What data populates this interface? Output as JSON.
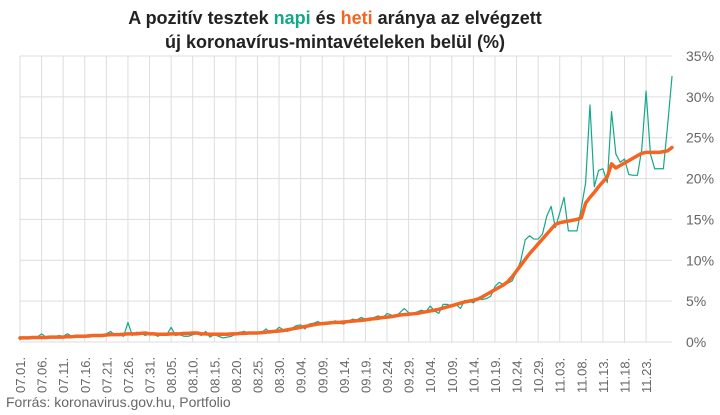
{
  "title": {
    "line1_pre": "A pozitív tesztek ",
    "line1_napi": "napi",
    "line1_mid": " és ",
    "line1_heti": "heti",
    "line1_post": " aránya az elvégzett",
    "line2": "új koronavírus-mintavételeken belül (%)"
  },
  "source": "Forrás: koronavirus.gov.hu, Portfolio",
  "colors": {
    "napi": "#13a88a",
    "heti": "#f26522",
    "grid": "#dddddd",
    "text": "#666666"
  },
  "chart_data": {
    "type": "line",
    "title": "A pozitív tesztek napi és heti aránya az elvégzett új koronavírus-mintavételeken belül (%)",
    "xlabel": "",
    "ylabel": "",
    "ylim": [
      0,
      35
    ],
    "yticks": [
      0,
      5,
      10,
      15,
      20,
      25,
      30,
      35
    ],
    "ytick_labels": [
      "0%",
      "5%",
      "10%",
      "15%",
      "20%",
      "25%",
      "30%",
      "35%"
    ],
    "y_axis_position": "right",
    "grid": true,
    "x_start": "07.01.",
    "x_end": "11.23.",
    "xtick_labels": [
      "07.01.",
      "07.06.",
      "07.11.",
      "07.16.",
      "07.21.",
      "07.26.",
      "07.31.",
      "08.05.",
      "08.10.",
      "08.15.",
      "08.20.",
      "08.25.",
      "08.30.",
      "09.04.",
      "09.09.",
      "09.14.",
      "09.19.",
      "09.24.",
      "09.29.",
      "10.04.",
      "10.09.",
      "10.14.",
      "10.19.",
      "10.24.",
      "10.29.",
      "11.03.",
      "11.08.",
      "11.13.",
      "11.18.",
      "11.23."
    ],
    "series": [
      {
        "name": "napi",
        "values": [
          0.3,
          0.6,
          0.4,
          0.5,
          0.6,
          1.0,
          0.6,
          0.5,
          0.6,
          0.8,
          0.7,
          1.0,
          0.7,
          0.6,
          0.8,
          0.7,
          0.6,
          0.9,
          0.8,
          0.7,
          1.0,
          1.3,
          0.8,
          0.9,
          0.7,
          2.4,
          0.8,
          1.2,
          1.1,
          0.8,
          1.0,
          0.9,
          0.7,
          1.1,
          0.9,
          1.8,
          0.8,
          0.9,
          0.7,
          0.7,
          0.9,
          1.0,
          0.8,
          1.3,
          0.6,
          0.9,
          0.7,
          0.5,
          0.6,
          0.7,
          1.0,
          1.2,
          1.3,
          1.0,
          1.1,
          1.2,
          1.2,
          1.6,
          1.1,
          1.3,
          1.8,
          1.5,
          1.3,
          1.7,
          2.0,
          2.1,
          1.6,
          2.2,
          2.3,
          2.5,
          2.2,
          2.4,
          2.3,
          2.6,
          2.3,
          2.2,
          2.5,
          2.8,
          2.7,
          3.0,
          2.8,
          2.6,
          3.0,
          3.2,
          2.9,
          3.5,
          3.3,
          3.1,
          3.6,
          4.1,
          3.6,
          3.4,
          3.7,
          3.9,
          3.7,
          4.4,
          3.8,
          3.5,
          4.6,
          4.6,
          4.4,
          4.6,
          4.1,
          5.1,
          5.0,
          4.8,
          5.3,
          5.2,
          5.3,
          5.6,
          6.8,
          7.3,
          7.0,
          7.2,
          7.5,
          8.6,
          10.0,
          12.5,
          13.0,
          12.6,
          12.6,
          13.2,
          15.4,
          16.6,
          14.0,
          15.8,
          17.7,
          13.6,
          13.6,
          13.6,
          16.4,
          19.5,
          29.0,
          19.0,
          21.0,
          21.2,
          19.5,
          28.2,
          23.0,
          22.0,
          22.4,
          20.5,
          20.4,
          20.4,
          23.6,
          30.7,
          23.0,
          21.2,
          21.2,
          21.2,
          26.6,
          32.5
        ]
      },
      {
        "name": "heti",
        "values": [
          0.5,
          0.5,
          0.5,
          0.55,
          0.55,
          0.55,
          0.55,
          0.6,
          0.6,
          0.6,
          0.6,
          0.65,
          0.65,
          0.7,
          0.7,
          0.7,
          0.75,
          0.8,
          0.8,
          0.8,
          0.85,
          0.9,
          0.9,
          0.9,
          0.95,
          1.0,
          1.0,
          1.0,
          1.05,
          1.1,
          1.0,
          1.0,
          0.95,
          0.95,
          0.95,
          1.0,
          1.0,
          1.0,
          1.05,
          1.05,
          1.1,
          1.1,
          1.0,
          1.0,
          0.95,
          0.95,
          0.95,
          0.95,
          0.95,
          1.0,
          1.0,
          1.05,
          1.05,
          1.1,
          1.1,
          1.1,
          1.15,
          1.2,
          1.25,
          1.3,
          1.35,
          1.4,
          1.5,
          1.6,
          1.7,
          1.8,
          1.9,
          2.0,
          2.1,
          2.2,
          2.25,
          2.3,
          2.35,
          2.4,
          2.4,
          2.45,
          2.5,
          2.55,
          2.6,
          2.65,
          2.7,
          2.8,
          2.85,
          2.9,
          3.0,
          3.05,
          3.1,
          3.2,
          3.3,
          3.35,
          3.4,
          3.45,
          3.5,
          3.6,
          3.7,
          3.8,
          3.9,
          4.0,
          4.15,
          4.3,
          4.45,
          4.6,
          4.75,
          4.9,
          5.0,
          5.1,
          5.25,
          5.5,
          5.8,
          6.1,
          6.4,
          6.7,
          7.0,
          7.4,
          8.0,
          8.7,
          9.4,
          10.1,
          10.8,
          11.4,
          12.0,
          12.6,
          13.2,
          13.8,
          14.4,
          14.6,
          14.7,
          14.8,
          14.9,
          15.0,
          15.2,
          17.0,
          17.7,
          18.3,
          19.0,
          19.6,
          20.2,
          21.8,
          21.3,
          21.6,
          21.9,
          22.2,
          22.5,
          22.8,
          23.1,
          23.2,
          23.2,
          23.2,
          23.2,
          23.3,
          23.4,
          23.8
        ]
      }
    ]
  }
}
